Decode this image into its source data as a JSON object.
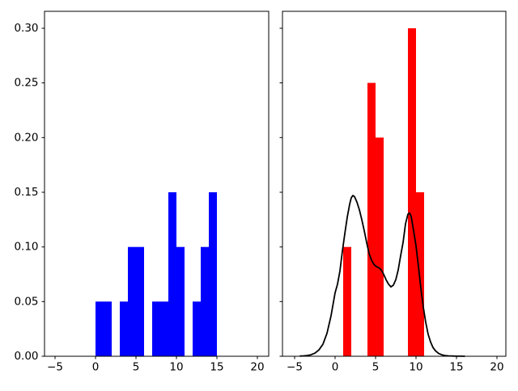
{
  "figure": {
    "background": "#ffffff",
    "title": ""
  },
  "chart_data": [
    {
      "id": "left-histogram",
      "type": "bar",
      "title": "",
      "xlabel": "",
      "ylabel": "",
      "bar_color": "#0000ff",
      "grid": false,
      "legend": null,
      "xlim": [
        -6.3,
        21.4
      ],
      "ylim": [
        0,
        0.3155
      ],
      "xticks": {
        "values": [
          -5,
          0,
          5,
          10,
          15,
          20
        ],
        "labels": [
          "−5",
          "0",
          "5",
          "10",
          "15",
          "20"
        ]
      },
      "yticks": {
        "values": [
          0.0,
          0.05,
          0.1,
          0.15,
          0.2,
          0.25,
          0.3
        ],
        "labels": [
          "0.00",
          "0.05",
          "0.10",
          "0.15",
          "0.20",
          "0.25",
          "0.30"
        ],
        "show_labels": true
      },
      "bars": [
        {
          "x0": 0,
          "x1": 1,
          "height": 0.05
        },
        {
          "x0": 1,
          "x1": 2,
          "height": 0.05
        },
        {
          "x0": 3,
          "x1": 4,
          "height": 0.05
        },
        {
          "x0": 4,
          "x1": 5,
          "height": 0.1
        },
        {
          "x0": 5,
          "x1": 6,
          "height": 0.1
        },
        {
          "x0": 7,
          "x1": 8,
          "height": 0.05
        },
        {
          "x0": 8,
          "x1": 9,
          "height": 0.05
        },
        {
          "x0": 9,
          "x1": 10,
          "height": 0.15
        },
        {
          "x0": 10,
          "x1": 11,
          "height": 0.1
        },
        {
          "x0": 12,
          "x1": 13,
          "height": 0.05
        },
        {
          "x0": 13,
          "x1": 14,
          "height": 0.1
        },
        {
          "x0": 14,
          "x1": 15,
          "height": 0.15
        }
      ]
    },
    {
      "id": "right-histogram-with-kde",
      "type": "bar+line",
      "title": "",
      "xlabel": "",
      "ylabel": "",
      "bar_color": "#ff0000",
      "grid": false,
      "legend": null,
      "xlim": [
        -6.5,
        21.1
      ],
      "ylim": [
        0,
        0.3155
      ],
      "xticks": {
        "values": [
          -5,
          0,
          5,
          10,
          15,
          20
        ],
        "labels": [
          "−5",
          "0",
          "5",
          "10",
          "15",
          "20"
        ]
      },
      "yticks": {
        "values": [
          0.0,
          0.05,
          0.1,
          0.15,
          0.2,
          0.25,
          0.3
        ],
        "labels": [
          "0.00",
          "0.05",
          "0.10",
          "0.15",
          "0.20",
          "0.25",
          "0.30"
        ],
        "show_labels": false
      },
      "bars": [
        {
          "x0": 1,
          "x1": 2,
          "height": 0.1
        },
        {
          "x0": 4,
          "x1": 5,
          "height": 0.25
        },
        {
          "x0": 5,
          "x1": 6,
          "height": 0.2
        },
        {
          "x0": 9,
          "x1": 10,
          "height": 0.3
        },
        {
          "x0": 10,
          "x1": 11,
          "height": 0.15
        }
      ],
      "curve": {
        "name": "kde-density-curve",
        "color": "#000000",
        "width": 1.8,
        "points": [
          [
            -4.3,
            0.0002
          ],
          [
            -4.0,
            0.0003
          ],
          [
            -3.5,
            0.0006
          ],
          [
            -3.0,
            0.0013
          ],
          [
            -2.5,
            0.0028
          ],
          [
            -2.0,
            0.0058
          ],
          [
            -1.5,
            0.011
          ],
          [
            -1.0,
            0.021
          ],
          [
            -0.5,
            0.037
          ],
          [
            0.0,
            0.058
          ],
          [
            0.3,
            0.066
          ],
          [
            0.6,
            0.078
          ],
          [
            0.9,
            0.096
          ],
          [
            1.2,
            0.112
          ],
          [
            1.5,
            0.127
          ],
          [
            1.8,
            0.139
          ],
          [
            2.0,
            0.145
          ],
          [
            2.2,
            0.147
          ],
          [
            2.4,
            0.146
          ],
          [
            2.7,
            0.141
          ],
          [
            3.0,
            0.134
          ],
          [
            3.3,
            0.125
          ],
          [
            3.6,
            0.115
          ],
          [
            3.9,
            0.104
          ],
          [
            4.2,
            0.094
          ],
          [
            4.5,
            0.088
          ],
          [
            4.8,
            0.084
          ],
          [
            5.1,
            0.082
          ],
          [
            5.4,
            0.081
          ],
          [
            5.7,
            0.079
          ],
          [
            6.0,
            0.075
          ],
          [
            6.3,
            0.07
          ],
          [
            6.6,
            0.066
          ],
          [
            6.9,
            0.0635
          ],
          [
            7.2,
            0.065
          ],
          [
            7.5,
            0.07
          ],
          [
            7.8,
            0.079
          ],
          [
            8.1,
            0.092
          ],
          [
            8.4,
            0.104
          ],
          [
            8.7,
            0.121
          ],
          [
            9.0,
            0.13
          ],
          [
            9.2,
            0.131
          ],
          [
            9.4,
            0.128
          ],
          [
            9.7,
            0.115
          ],
          [
            10.0,
            0.101
          ],
          [
            10.3,
            0.082
          ],
          [
            10.6,
            0.062
          ],
          [
            10.9,
            0.045
          ],
          [
            11.2,
            0.031
          ],
          [
            11.5,
            0.02
          ],
          [
            11.8,
            0.013
          ],
          [
            12.1,
            0.008
          ],
          [
            12.4,
            0.005
          ],
          [
            12.8,
            0.0025
          ],
          [
            13.2,
            0.0013
          ],
          [
            13.6,
            0.0007
          ],
          [
            14.0,
            0.0004
          ],
          [
            14.5,
            0.0002
          ],
          [
            15.0,
            0.0001
          ],
          [
            15.5,
            0.0001
          ],
          [
            16.0,
            0.0
          ]
        ]
      }
    }
  ]
}
